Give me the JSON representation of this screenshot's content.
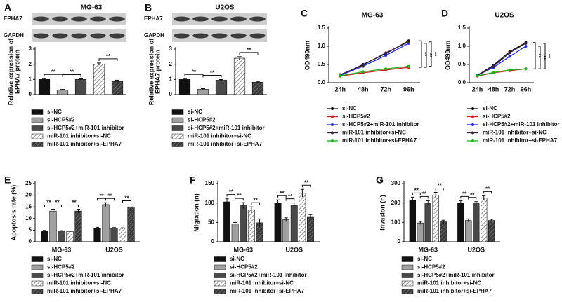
{
  "chart_data": [
    {
      "type": "bar",
      "label": "A",
      "title": "MG-63",
      "blot_labels": [
        "EPHA7",
        "GAPDH"
      ],
      "ylabel": [
        "Relative expression of",
        "EPHA7 protein"
      ],
      "categories": [
        "si-NC",
        "si-HCP5#2",
        "si-HCP5#2+miR-101 inhibitor",
        "miR-101 inhibitor+si-NC",
        "miR-101 inhibitor+si-EPHA7"
      ],
      "values": [
        1.0,
        0.3,
        1.0,
        2.0,
        0.87
      ],
      "errors": [
        0.05,
        0.04,
        0.04,
        0.08,
        0.08
      ],
      "colors": [
        "#111111",
        "#a0a0a0",
        "#4a4a4a",
        "#ffffff",
        "#3a3a3a"
      ],
      "patterns": [
        "solid",
        "solid",
        "solid",
        "stripe",
        "stripe"
      ],
      "ylim": [
        0,
        3
      ],
      "yticks": [
        0,
        1,
        2,
        3
      ],
      "annotations": [
        "**",
        "**",
        "**"
      ]
    },
    {
      "type": "bar",
      "label": "B",
      "title": "U2OS",
      "blot_labels": [
        "EPHA7",
        "GAPDH"
      ],
      "ylabel": [
        "Relative expression of",
        "EPHA7 protein"
      ],
      "categories": [
        "si-NC",
        "si-HCP5#2",
        "si-HCP5#2+miR-101 inhibitor",
        "miR-101 inhibitor+si-NC",
        "miR-101 inhibitor+si-EPHA7"
      ],
      "values": [
        1.0,
        0.35,
        0.95,
        2.4,
        0.82
      ],
      "errors": [
        0.05,
        0.04,
        0.04,
        0.1,
        0.05
      ],
      "colors": [
        "#111111",
        "#a0a0a0",
        "#4a4a4a",
        "#ffffff",
        "#3a3a3a"
      ],
      "patterns": [
        "solid",
        "solid",
        "solid",
        "stripe",
        "stripe"
      ],
      "ylim": [
        0,
        3
      ],
      "yticks": [
        0,
        1,
        2,
        3
      ],
      "annotations": [
        "**",
        "**",
        "**"
      ]
    },
    {
      "type": "line",
      "label": "C",
      "title": "MG-63",
      "ylabel": "OD490nm",
      "categories": [
        "24h",
        "48h",
        "72h",
        "96h"
      ],
      "series": [
        {
          "name": "si-NC",
          "color": "#111111",
          "values": [
            0.2,
            0.5,
            0.8,
            1.15
          ]
        },
        {
          "name": "si-HCP5#2",
          "color": "#d62020",
          "values": [
            0.18,
            0.27,
            0.35,
            0.42
          ]
        },
        {
          "name": "si-HCP5#2+miR-101 inhibitor",
          "color": "#2030d0",
          "values": [
            0.2,
            0.45,
            0.75,
            1.08
          ]
        },
        {
          "name": "miR-101 inhibitor+si-NC",
          "color": "#402040",
          "values": [
            0.22,
            0.48,
            0.82,
            1.12
          ]
        },
        {
          "name": "miR-101 inhibitor+si-EPHA7",
          "color": "#20b020",
          "values": [
            0.19,
            0.3,
            0.38,
            0.45
          ]
        }
      ],
      "ylim": [
        0,
        1.5
      ],
      "yticks": [
        {
          "value": 0,
          "label": "0.0"
        },
        0.5,
        {
          "value": 1,
          "label": "1.0"
        },
        1.5
      ],
      "annotations": [
        "**",
        "**",
        "**"
      ]
    },
    {
      "type": "line",
      "label": "D",
      "title": "U2OS",
      "ylabel": "OD490nm",
      "categories": [
        "24h",
        "48h",
        "72h",
        "96h"
      ],
      "series": [
        {
          "name": "si-NC",
          "color": "#111111",
          "values": [
            0.2,
            0.48,
            0.85,
            1.1
          ]
        },
        {
          "name": "si-HCP5#2",
          "color": "#d62020",
          "values": [
            0.18,
            0.27,
            0.33,
            0.38
          ]
        },
        {
          "name": "si-HCP5#2+miR-101 inhibitor",
          "color": "#2030d0",
          "values": [
            0.2,
            0.42,
            0.72,
            1.0
          ]
        },
        {
          "name": "miR-101 inhibitor+si-NC",
          "color": "#402040",
          "values": [
            0.2,
            0.45,
            0.82,
            1.08
          ]
        },
        {
          "name": "miR-101 inhibitor+si-EPHA7",
          "color": "#20b020",
          "values": [
            0.19,
            0.28,
            0.35,
            0.38
          ]
        }
      ],
      "ylim": [
        0,
        1.5
      ],
      "yticks": [
        {
          "value": 0,
          "label": "0.0"
        },
        0.5,
        {
          "value": 1,
          "label": "1.0"
        },
        1.5
      ],
      "annotations": [
        "**",
        "**",
        "**"
      ]
    },
    {
      "type": "grouped_bar",
      "label": "E",
      "ylabel": "Apoptosis rate (%)",
      "categories": [
        "MG-63",
        "U2OS"
      ],
      "series": [
        {
          "name": "si-NC",
          "color": "#111111",
          "pattern": "solid",
          "values": [
            4.7,
            5.9
          ],
          "errors": [
            0.2,
            0.3
          ]
        },
        {
          "name": "si-HCP5#2",
          "color": "#a0a0a0",
          "pattern": "solid",
          "values": [
            13.2,
            16.0
          ],
          "errors": [
            0.8,
            0.8
          ]
        },
        {
          "name": "si-HCP5#2+miR-101 inhibitor",
          "color": "#4a4a4a",
          "pattern": "solid",
          "values": [
            4.6,
            5.9
          ],
          "errors": [
            0.2,
            0.2
          ]
        },
        {
          "name": "miR-101 inhibitor+si-NC",
          "color": "#ffffff",
          "pattern": "stripe",
          "values": [
            4.4,
            5.8
          ],
          "errors": [
            0.2,
            0.2
          ]
        },
        {
          "name": "miR-101 inhibitor+si-EPHA7",
          "color": "#3a3a3a",
          "pattern": "stripe",
          "values": [
            13.2,
            15.0
          ],
          "errors": [
            0.8,
            0.8
          ]
        }
      ],
      "ylim": [
        0,
        25
      ],
      "yticks": [
        0,
        5,
        10,
        15,
        20,
        25
      ],
      "annotations": [
        "**",
        "**",
        "**",
        "**",
        "**",
        "**"
      ]
    },
    {
      "type": "grouped_bar",
      "label": "F",
      "ylabel": "Migration (n)",
      "categories": [
        "MG-63",
        "U2OS"
      ],
      "series": [
        {
          "name": "si-NC",
          "color": "#111111",
          "pattern": "solid",
          "values": [
            103,
            100
          ],
          "errors": [
            8,
            8
          ]
        },
        {
          "name": "si-HCP5#2",
          "color": "#a0a0a0",
          "pattern": "solid",
          "values": [
            46,
            57
          ],
          "errors": [
            4,
            5
          ]
        },
        {
          "name": "si-HCP5#2+miR-101 inhibitor",
          "color": "#4a4a4a",
          "pattern": "solid",
          "values": [
            93,
            94
          ],
          "errors": [
            8,
            6
          ]
        },
        {
          "name": "miR-101 inhibitor+si-NC",
          "color": "#ffffff",
          "pattern": "stripe",
          "values": [
            82,
            125
          ],
          "errors": [
            8,
            10
          ]
        },
        {
          "name": "miR-101 inhibitor+si-EPHA7",
          "color": "#3a3a3a",
          "pattern": "stripe",
          "values": [
            49,
            65
          ],
          "errors": [
            10,
            5
          ]
        }
      ],
      "ylim": [
        0,
        150
      ],
      "yticks": [
        0,
        50,
        100,
        150
      ],
      "annotations": [
        "**",
        "**",
        "**",
        "**",
        "**",
        "**"
      ]
    },
    {
      "type": "grouped_bar",
      "label": "G",
      "ylabel": "Invasion (n)",
      "categories": [
        "MG-63",
        "U2OS"
      ],
      "series": [
        {
          "name": "si-NC",
          "color": "#111111",
          "pattern": "solid",
          "values": [
            215,
            200
          ],
          "errors": [
            15,
            12
          ]
        },
        {
          "name": "si-HCP5#2",
          "color": "#a0a0a0",
          "pattern": "solid",
          "values": [
            97,
            110
          ],
          "errors": [
            8,
            8
          ]
        },
        {
          "name": "si-HCP5#2+miR-101 inhibitor",
          "color": "#4a4a4a",
          "pattern": "solid",
          "values": [
            200,
            197
          ],
          "errors": [
            12,
            10
          ]
        },
        {
          "name": "miR-101 inhibitor+si-NC",
          "color": "#ffffff",
          "pattern": "stripe",
          "values": [
            240,
            225
          ],
          "errors": [
            15,
            12
          ]
        },
        {
          "name": "miR-101 inhibitor+si-EPHA7",
          "color": "#3a3a3a",
          "pattern": "stripe",
          "values": [
            103,
            110
          ],
          "errors": [
            8,
            6
          ]
        }
      ],
      "ylim": [
        0,
        300
      ],
      "yticks": [
        0,
        100,
        200,
        300
      ],
      "annotations": [
        "**",
        "**",
        "**",
        "**",
        "**",
        "**"
      ]
    }
  ]
}
